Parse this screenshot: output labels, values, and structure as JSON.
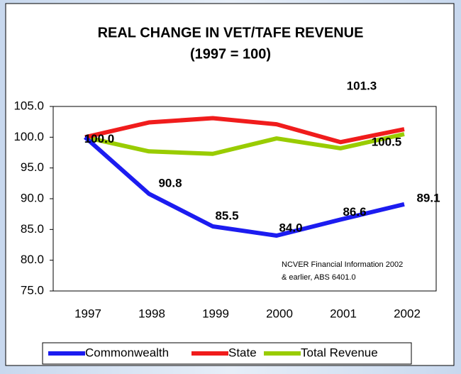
{
  "chart_data": {
    "type": "line",
    "title": "REAL CHANGE IN VET/TAFE REVENUE",
    "subtitle": "(1997 = 100)",
    "annotation": [
      "NCVER Financial Information 2002",
      "& earlier, ABS 6401.0"
    ],
    "categories": [
      "1997",
      "1998",
      "1999",
      "2000",
      "2001",
      "2002"
    ],
    "series": [
      {
        "name": "Commonwealth",
        "color": "#1c1cf0",
        "values": [
          100.0,
          90.8,
          85.5,
          84.0,
          86.6,
          89.1
        ],
        "value_labels": [
          "100.0",
          "90.8",
          "85.5",
          "84.0",
          "86.6",
          "89.1"
        ]
      },
      {
        "name": "State",
        "color": "#f01c1c",
        "values": [
          100.0,
          102.4,
          103.1,
          102.1,
          99.2,
          101.3
        ],
        "value_labels": [
          null,
          null,
          null,
          null,
          null,
          "101.3"
        ]
      },
      {
        "name": "Total Revenue",
        "color": "#99cc00",
        "values": [
          100.0,
          97.7,
          97.3,
          99.8,
          98.2,
          100.5
        ],
        "value_labels": [
          null,
          null,
          null,
          null,
          null,
          "100.5"
        ]
      }
    ],
    "ylim": [
      75,
      105
    ],
    "yticks": [
      {
        "value": 75,
        "label": "75.0"
      },
      {
        "value": 80,
        "label": "80.0"
      },
      {
        "value": 85,
        "label": "85.0"
      },
      {
        "value": 90,
        "label": "90.0"
      },
      {
        "value": 95,
        "label": "95.0"
      },
      {
        "value": 100,
        "label": "100.0"
      },
      {
        "value": 105,
        "label": "105.0"
      }
    ],
    "grid": false,
    "legend": "bottom"
  }
}
